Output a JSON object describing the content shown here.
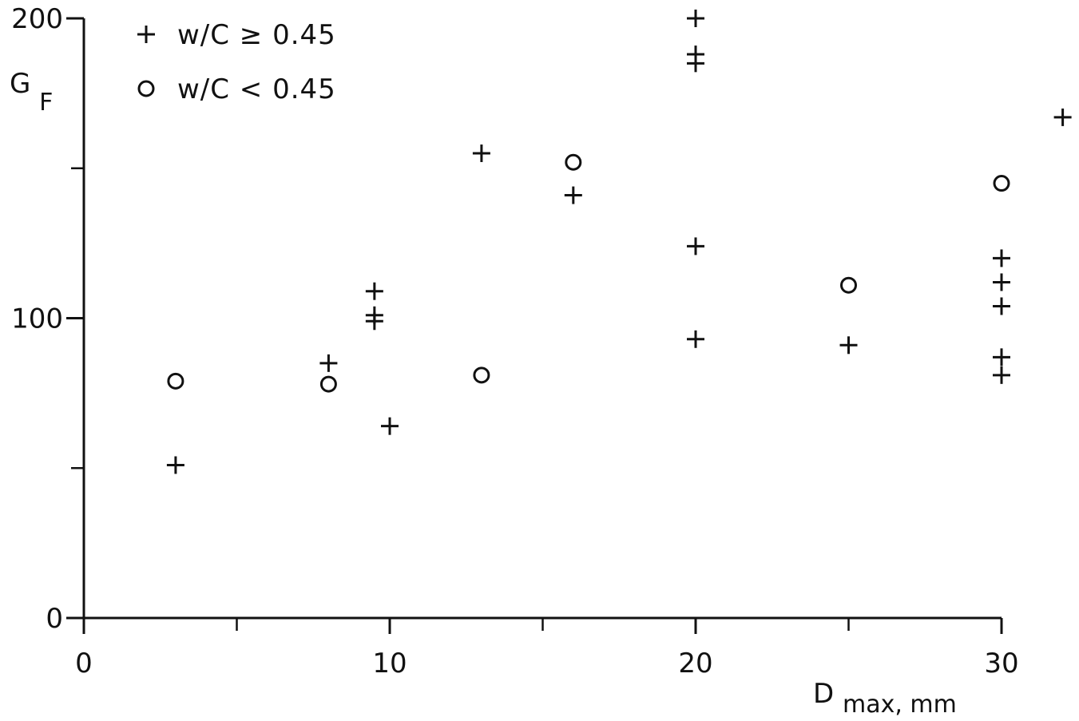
{
  "chart_data": {
    "type": "scatter",
    "title": "",
    "xlabel": "D",
    "xlabel_sub": "max, mm",
    "ylabel": "G",
    "ylabel_sub": "F",
    "xlim": [
      0,
      30
    ],
    "ylim": [
      0,
      200
    ],
    "x_ticks": [
      0,
      10,
      20,
      30
    ],
    "x_minor_ticks": [
      5,
      15,
      25
    ],
    "y_ticks": [
      0,
      100,
      200
    ],
    "y_minor_ticks": [
      50,
      150
    ],
    "grid": false,
    "legend_position": "top-left",
    "series": [
      {
        "name": "w/C ≥ 0.45",
        "marker": "plus",
        "points": [
          [
            3,
            51
          ],
          [
            8,
            85
          ],
          [
            9.5,
            109
          ],
          [
            9.5,
            101
          ],
          [
            9.5,
            99
          ],
          [
            10,
            64
          ],
          [
            13,
            155
          ],
          [
            16,
            141
          ],
          [
            20,
            200
          ],
          [
            20,
            188
          ],
          [
            20,
            185
          ],
          [
            20,
            124
          ],
          [
            20,
            93
          ],
          [
            25,
            91
          ],
          [
            30,
            120
          ],
          [
            30,
            112
          ],
          [
            30,
            104
          ],
          [
            30,
            87
          ],
          [
            30,
            81
          ],
          [
            32,
            167
          ]
        ]
      },
      {
        "name": "w/C < 0.45",
        "marker": "circle",
        "points": [
          [
            3,
            79
          ],
          [
            8,
            78
          ],
          [
            13,
            81
          ],
          [
            16,
            152
          ],
          [
            25,
            111
          ],
          [
            30,
            145
          ]
        ]
      }
    ]
  }
}
